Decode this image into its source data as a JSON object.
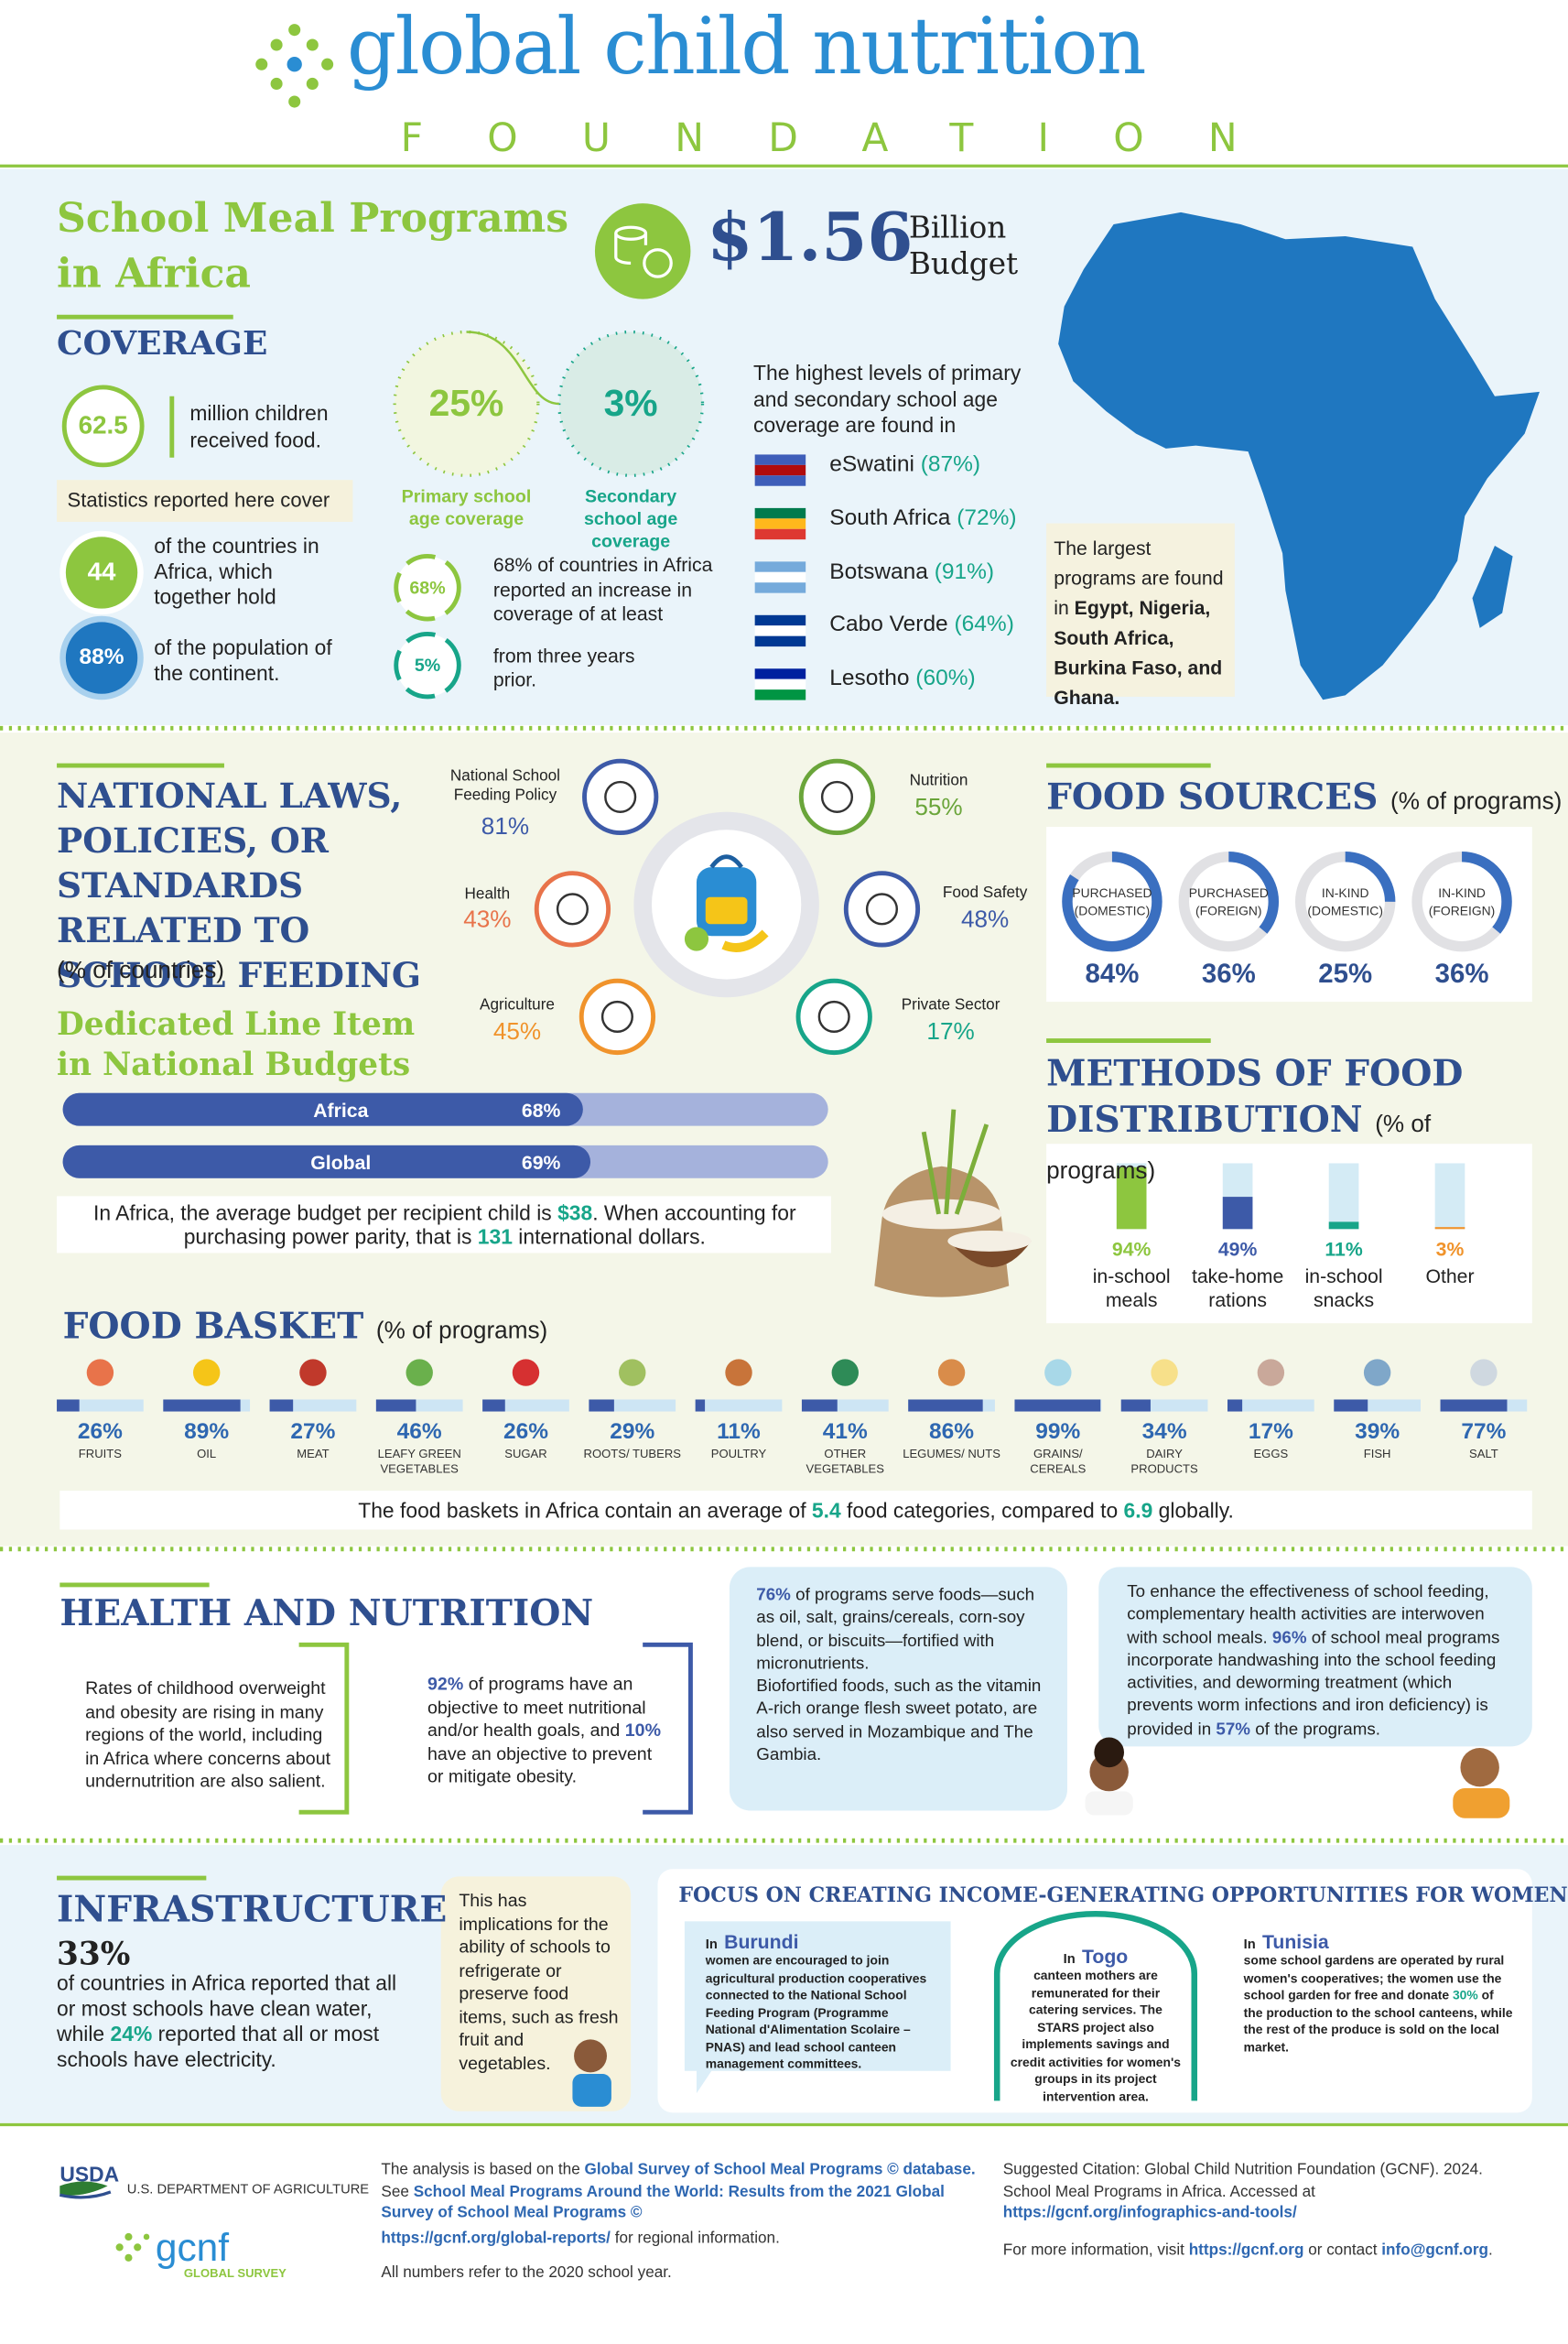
{
  "header": {
    "title": "global child nutrition",
    "subtitle": "FOUNDATION"
  },
  "intro": {
    "title": "School Meal Programs in Africa",
    "budget": "$1.56",
    "budget_unit": "Billion Budget"
  },
  "coverage": {
    "heading": "COVERAGE",
    "children": {
      "value": "62.5",
      "text": "million children received food."
    },
    "note": "Statistics reported here cover",
    "countries": {
      "value": "44",
      "text": "of the countries in Africa, which together hold"
    },
    "population": {
      "value": "88%",
      "text": "of the population of the continent."
    },
    "primary": {
      "value": "25%",
      "label": "Primary school age coverage"
    },
    "secondary": {
      "value": "3%",
      "label": "Secondary school age coverage"
    },
    "increase": {
      "value": "68%",
      "text": "68% of countries in Africa reported an increase in coverage of at least"
    },
    "increase_by": {
      "value": "5%",
      "text": "from three years prior."
    },
    "highest": {
      "intro": "The highest levels of primary and secondary school age coverage are found in",
      "countries": [
        {
          "name": "eSwatini",
          "share": "(87%)"
        },
        {
          "name": "South Africa",
          "share": "(72%)"
        },
        {
          "name": "Botswana",
          "share": "(91%)"
        },
        {
          "name": "Cabo Verde",
          "share": "(64%)"
        },
        {
          "name": "Lesotho",
          "share": "(60%)"
        }
      ]
    },
    "largest": [
      "The largest programs are found in ",
      "Egypt, Nigeria, South Africa, Burkina Faso, and Ghana."
    ]
  },
  "policies": {
    "heading": "NATIONAL LAWS, POLICIES, OR STANDARDS RELATED TO SCHOOL FEEDING",
    "unit": "(% of countries)",
    "items": [
      {
        "name": "National School Feeding Policy",
        "share": "81%"
      },
      {
        "name": "Nutrition",
        "share": "55%"
      },
      {
        "name": "Health",
        "share": "43%"
      },
      {
        "name": "Food Safety",
        "share": "48%"
      },
      {
        "name": "Agriculture",
        "share": "45%"
      },
      {
        "name": "Private Sector",
        "share": "17%"
      }
    ],
    "budget_heading": "Dedicated Line Item in National Budgets",
    "budget_bars": [
      {
        "name": "Africa",
        "value": 68,
        "label": "68%"
      },
      {
        "name": "Global",
        "value": 69,
        "label": "69%"
      }
    ],
    "budget_note": [
      "In Africa, the average budget per recipient child is ",
      "$38",
      ". When accounting for purchasing power parity, that is ",
      "131",
      " international dollars."
    ]
  },
  "food_sources": {
    "heading": "FOOD SOURCES",
    "unit": "(% of programs)",
    "items": [
      {
        "name": "PURCHASED (DOMESTIC)",
        "value": 84,
        "label": "84%"
      },
      {
        "name": "PURCHASED (FOREIGN)",
        "value": 36,
        "label": "36%"
      },
      {
        "name": "IN-KIND (DOMESTIC)",
        "value": 25,
        "label": "25%"
      },
      {
        "name": "IN-KIND (FOREIGN)",
        "value": 36,
        "label": "36%"
      }
    ]
  },
  "distribution": {
    "heading": "METHODS OF FOOD DISTRIBUTION",
    "unit": "(% of programs)",
    "items": [
      {
        "name": "in-school meals",
        "value": 94,
        "label": "94%",
        "color": "#8dc63f"
      },
      {
        "name": "take-home rations",
        "value": 49,
        "label": "49%",
        "color": "#3d5aa8"
      },
      {
        "name": "in-school snacks",
        "value": 11,
        "label": "11%",
        "color": "#17a589"
      },
      {
        "name": "Other",
        "value": 3,
        "label": "3%",
        "color": "#f0932b"
      }
    ]
  },
  "food_basket": {
    "heading": "FOOD BASKET",
    "unit": "(% of programs)",
    "items": [
      {
        "name": "FRUITS",
        "value": 26,
        "label": "26%",
        "color": "#e8734a"
      },
      {
        "name": "OIL",
        "value": 89,
        "label": "89%",
        "color": "#f5c518"
      },
      {
        "name": "MEAT",
        "value": 27,
        "label": "27%",
        "color": "#c0392b"
      },
      {
        "name": "LEAFY GREEN VEGETABLES",
        "value": 46,
        "label": "46%",
        "color": "#6ab04c"
      },
      {
        "name": "SUGAR",
        "value": 26,
        "label": "26%",
        "color": "#d63031"
      },
      {
        "name": "ROOTS/ TUBERS",
        "value": 29,
        "label": "29%",
        "color": "#a0c060"
      },
      {
        "name": "POULTRY",
        "value": 11,
        "label": "11%",
        "color": "#c8743a"
      },
      {
        "name": "OTHER VEGETABLES",
        "value": 41,
        "label": "41%",
        "color": "#2e8b57"
      },
      {
        "name": "LEGUMES/ NUTS",
        "value": 86,
        "label": "86%",
        "color": "#d98c4a"
      },
      {
        "name": "GRAINS/ CEREALS",
        "value": 99,
        "label": "99%",
        "color": "#a8d8e8"
      },
      {
        "name": "DAIRY PRODUCTS",
        "value": 34,
        "label": "34%",
        "color": "#f7e08a"
      },
      {
        "name": "EGGS",
        "value": 17,
        "label": "17%",
        "color": "#c9a89a"
      },
      {
        "name": "FISH",
        "value": 39,
        "label": "39%",
        "color": "#7fa7c9"
      },
      {
        "name": "SALT",
        "value": 77,
        "label": "77%",
        "color": "#cfd8e0"
      }
    ],
    "note": [
      "The food baskets in Africa contain an average of ",
      "5.4",
      " food categories, compared to ",
      "6.9",
      " globally."
    ]
  },
  "health": {
    "heading": "HEALTH AND NUTRITION",
    "overweight": "Rates of childhood overweight and obesity are rising in many regions of the world, including in Africa where concerns about undernutrition are also salient.",
    "objectives": [
      "92%",
      " of programs have an objective to meet nutritional and/or health goals, and ",
      "10%",
      " have an objective to prevent or mitigate obesity."
    ],
    "fortified": [
      "76%",
      " of programs serve foods—such as oil, salt, grains/cereals, corn-soy blend, or biscuits—fortified with micronutrients."
    ],
    "biofortified": "Biofortified foods, such as the vitamin A-rich orange flesh sweet potato, are also served in Mozambique and The Gambia.",
    "complementary": [
      "To enhance the effectiveness of school feeding, complementary health activities are interwoven with school meals. ",
      "96%",
      " of school meal programs incorporate handwashing into the school feeding activities, and deworming treatment (which prevents worm infections and iron deficiency)  is provided in ",
      "57%",
      " of the programs."
    ]
  },
  "infrastructure": {
    "heading": "INFRASTRUCTURE",
    "share": "33%",
    "text": [
      "of countries in Africa reported that all or most schools have clean water, while ",
      "24%",
      " reported that all or most schools have electricity."
    ],
    "implications": "This has implications for the ability of schools to refrigerate or preserve food items, such as fresh fruit and vegetables."
  },
  "women": {
    "heading": "FOCUS ON CREATING INCOME-GENERATING OPPORTUNITIES FOR WOMEN",
    "cases": [
      {
        "prefix": "In",
        "country": "Burundi",
        "text": [
          "women are encouraged to join agricultural production cooperatives connected to the National School Feeding Program (Programme National d'Alimentation Scolaire – PNAS) and lead school canteen management committees."
        ]
      },
      {
        "prefix": "In",
        "country": "Togo",
        "text": [
          "canteen mothers are remunerated for their catering services. The STARS project also implements savings and credit activities for women's groups in its project intervention area."
        ]
      },
      {
        "prefix": "In",
        "country": "Tunisia",
        "text": [
          "some school gardens are operated by rural women's cooperatives; the women use the school garden for free and donate ",
          "30%",
          " of the production to the school canteens, while the rest of the produce is sold on the local market."
        ]
      }
    ]
  },
  "footer": {
    "usda": "USDA",
    "usda_name": "U.S. DEPARTMENT OF AGRICULTURE",
    "gcnf": "gcnf",
    "survey": "GLOBAL SURVEY",
    "analysis": [
      "The analysis is based on the ",
      "Global Survey of School Meal Programs © database.",
      " See ",
      "School Meal Programs Around the World: Results from the 2021 Global Survey of School Meal Programs ©"
    ],
    "regional": [
      "https://gcnf.org/global-reports/",
      " for regional information."
    ],
    "year": "All numbers refer to the 2020 school year.",
    "citation": [
      "Suggested Citation: Global Child Nutrition Foundation (GCNF). 2024. School Meal Programs in Africa. Accessed at ",
      "https://gcnf.org/infographics-and-tools/"
    ],
    "contact": [
      "For more information, visit ",
      "https://gcnf.org",
      " or contact ",
      "info@gcnf.org",
      "."
    ]
  }
}
